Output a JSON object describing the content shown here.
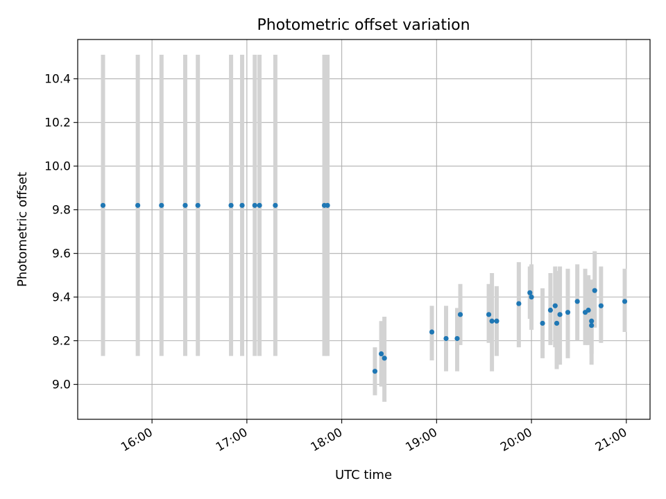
{
  "chart_data": {
    "type": "scatter",
    "title": "Photometric offset variation",
    "xlabel": "UTC time",
    "ylabel": "Photometric offset",
    "x_axis": "time (hours UTC)",
    "xlim": [
      "15:13",
      "21:15"
    ],
    "ylim": [
      8.84,
      10.58
    ],
    "x_ticks": [
      "16:00",
      "17:00",
      "18:00",
      "19:00",
      "20:00",
      "21:00"
    ],
    "y_ticks": [
      "9.0",
      "9.2",
      "9.4",
      "9.6",
      "9.8",
      "10.0",
      "10.2",
      "10.4"
    ],
    "grid": true,
    "legend": "none",
    "colors": {
      "marker": "#1f77b4",
      "errorbar": "#d3d3d3",
      "grid": "#b0b0b0"
    },
    "points": [
      {
        "time": "15:29",
        "y": 9.82,
        "ylow": 9.13,
        "yhigh": 10.51
      },
      {
        "time": "15:51",
        "y": 9.82,
        "ylow": 9.13,
        "yhigh": 10.51
      },
      {
        "time": "16:06",
        "y": 9.82,
        "ylow": 9.13,
        "yhigh": 10.51
      },
      {
        "time": "16:21",
        "y": 9.82,
        "ylow": 9.13,
        "yhigh": 10.51
      },
      {
        "time": "16:29",
        "y": 9.82,
        "ylow": 9.13,
        "yhigh": 10.51
      },
      {
        "time": "16:50",
        "y": 9.82,
        "ylow": 9.13,
        "yhigh": 10.51
      },
      {
        "time": "16:57",
        "y": 9.82,
        "ylow": 9.13,
        "yhigh": 10.51
      },
      {
        "time": "17:05",
        "y": 9.82,
        "ylow": 9.13,
        "yhigh": 10.51
      },
      {
        "time": "17:08",
        "y": 9.82,
        "ylow": 9.13,
        "yhigh": 10.51
      },
      {
        "time": "17:18",
        "y": 9.82,
        "ylow": 9.13,
        "yhigh": 10.51
      },
      {
        "time": "17:49",
        "y": 9.82,
        "ylow": 9.13,
        "yhigh": 10.51
      },
      {
        "time": "17:51",
        "y": 9.82,
        "ylow": 9.13,
        "yhigh": 10.51
      },
      {
        "time": "18:21",
        "y": 9.06,
        "ylow": 8.95,
        "yhigh": 9.17
      },
      {
        "time": "18:25",
        "y": 9.14,
        "ylow": 8.99,
        "yhigh": 9.29
      },
      {
        "time": "18:27",
        "y": 9.12,
        "ylow": 8.92,
        "yhigh": 9.31
      },
      {
        "time": "18:57",
        "y": 9.24,
        "ylow": 9.11,
        "yhigh": 9.36
      },
      {
        "time": "19:06",
        "y": 9.21,
        "ylow": 9.06,
        "yhigh": 9.36
      },
      {
        "time": "19:13",
        "y": 9.21,
        "ylow": 9.06,
        "yhigh": 9.35
      },
      {
        "time": "19:15",
        "y": 9.32,
        "ylow": 9.18,
        "yhigh": 9.46
      },
      {
        "time": "19:33",
        "y": 9.32,
        "ylow": 9.19,
        "yhigh": 9.46
      },
      {
        "time": "19:35",
        "y": 9.29,
        "ylow": 9.06,
        "yhigh": 9.51
      },
      {
        "time": "19:38",
        "y": 9.29,
        "ylow": 9.13,
        "yhigh": 9.45
      },
      {
        "time": "19:52",
        "y": 9.37,
        "ylow": 9.17,
        "yhigh": 9.56
      },
      {
        "time": "19:59",
        "y": 9.42,
        "ylow": 9.3,
        "yhigh": 9.54
      },
      {
        "time": "20:00",
        "y": 9.4,
        "ylow": 9.25,
        "yhigh": 9.55
      },
      {
        "time": "20:07",
        "y": 9.28,
        "ylow": 9.12,
        "yhigh": 9.44
      },
      {
        "time": "20:12",
        "y": 9.34,
        "ylow": 9.18,
        "yhigh": 9.51
      },
      {
        "time": "20:15",
        "y": 9.36,
        "ylow": 9.17,
        "yhigh": 9.54
      },
      {
        "time": "20:16",
        "y": 9.28,
        "ylow": 9.07,
        "yhigh": 9.52
      },
      {
        "time": "20:18",
        "y": 9.32,
        "ylow": 9.09,
        "yhigh": 9.54
      },
      {
        "time": "20:23",
        "y": 9.33,
        "ylow": 9.12,
        "yhigh": 9.53
      },
      {
        "time": "20:29",
        "y": 9.38,
        "ylow": 9.2,
        "yhigh": 9.55
      },
      {
        "time": "20:34",
        "y": 9.33,
        "ylow": 9.18,
        "yhigh": 9.53
      },
      {
        "time": "20:36",
        "y": 9.34,
        "ylow": 9.18,
        "yhigh": 9.5
      },
      {
        "time": "20:38",
        "y": 9.27,
        "ylow": 9.14,
        "yhigh": 9.39
      },
      {
        "time": "20:38",
        "y": 9.29,
        "ylow": 9.09,
        "yhigh": 9.48
      },
      {
        "time": "20:40",
        "y": 9.43,
        "ylow": 9.26,
        "yhigh": 9.61
      },
      {
        "time": "20:44",
        "y": 9.36,
        "ylow": 9.19,
        "yhigh": 9.54
      },
      {
        "time": "20:59",
        "y": 9.38,
        "ylow": 9.24,
        "yhigh": 9.53
      }
    ]
  }
}
